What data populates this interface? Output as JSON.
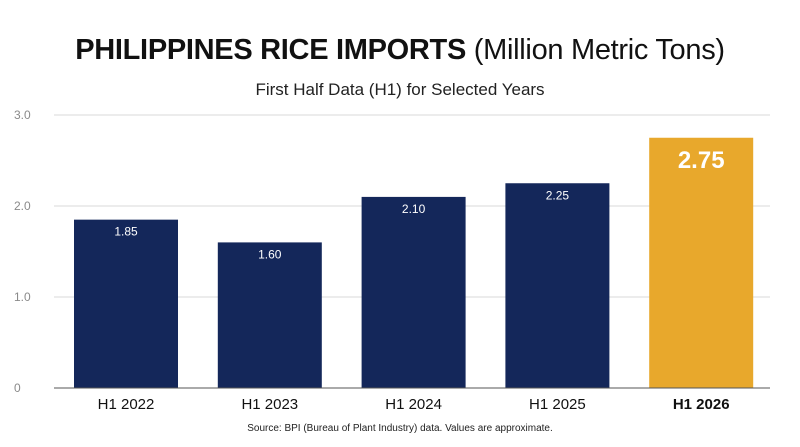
{
  "header": {
    "title_bold": "PHILIPPINES RICE IMPORTS",
    "title_light": "(Million Metric Tons)",
    "subtitle": "First Half Data (H1) for Selected Years"
  },
  "footer": {
    "source": "Source: BPI (Bureau of Plant Industry) data. Values are approximate."
  },
  "chart_data": {
    "type": "bar",
    "title": "PHILIPPINES RICE IMPORTS (Million Metric Tons)",
    "subtitle": "First Half Data (H1) for Selected Years",
    "categories": [
      "H1 2022",
      "H1 2023",
      "H1 2024",
      "H1 2025",
      "H1 2026"
    ],
    "values": [
      1.85,
      1.6,
      2.1,
      2.25,
      2.75
    ],
    "value_labels": [
      "1.85",
      "1.60",
      "2.10",
      "2.25",
      "2.75"
    ],
    "highlight_index": 4,
    "ylim": [
      0,
      3.0
    ],
    "yticks": [
      0,
      1.0,
      2.0,
      3.0
    ],
    "ytick_labels": [
      "0",
      "1.0",
      "2.0",
      "3.0"
    ],
    "grid": true,
    "xlabel": "",
    "ylabel": "",
    "colors": {
      "bar": "#14275a",
      "highlight": "#e8a82c",
      "grid": "#d9d9d9",
      "tick": "#8a8a8a"
    }
  }
}
